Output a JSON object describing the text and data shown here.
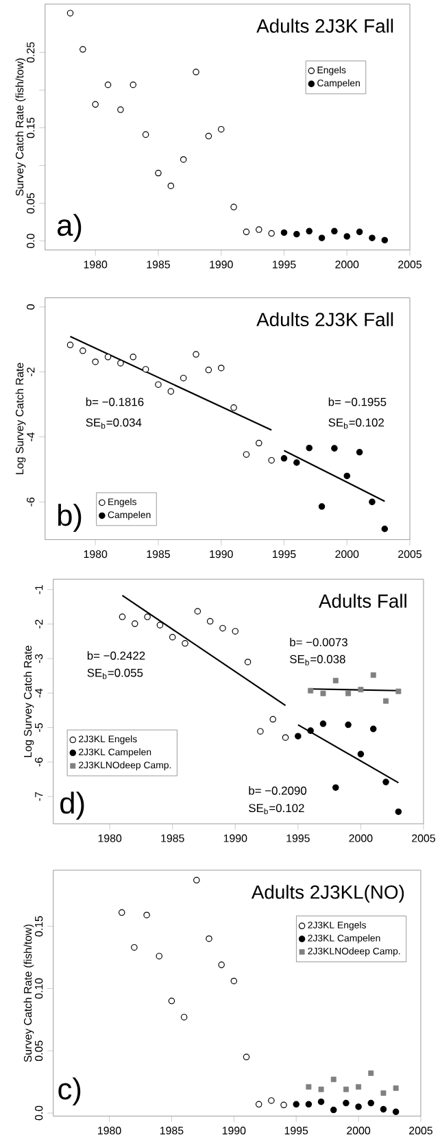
{
  "chart_data": [
    {
      "type": "scatter",
      "title": "Adults 2J3K Fall",
      "ylabel": "Survey Catch Rate (fish/tow)",
      "xlim": [
        1976,
        2005
      ],
      "ylim": [
        -0.012,
        0.314
      ],
      "xticks": [
        1980,
        1985,
        1990,
        1995,
        2000,
        2005
      ],
      "yticks": [
        {
          "value": 0,
          "label": "0.0"
        },
        0.05,
        {
          "value": 0.1,
          "label": null
        },
        0.15,
        {
          "value": 0.2,
          "label": null
        },
        0.25
      ],
      "legend": "top right",
      "annotations": [
        "a)"
      ],
      "series": [
        {
          "name": "Engels",
          "color": "#000000",
          "marker": "circle",
          "x": [
            1978,
            1979,
            1980,
            1981,
            1982,
            1983,
            1984,
            1985,
            1986,
            1987,
            1988,
            1989,
            1990,
            1991,
            1992,
            1993,
            1994
          ],
          "values": [
            0.302,
            0.254,
            0.181,
            0.207,
            0.174,
            0.207,
            0.141,
            0.09,
            0.073,
            0.108,
            0.224,
            0.139,
            0.148,
            0.045,
            0.012,
            0.015,
            0.01
          ]
        },
        {
          "name": "Campelen",
          "color": "#000000",
          "marker": "circle",
          "x": [
            1995,
            1996,
            1997,
            1998,
            1999,
            2000,
            2001,
            2002,
            2003
          ],
          "values": [
            0.011,
            0.009,
            0.013,
            0.004,
            0.013,
            0.006,
            0.012,
            0.004,
            0.001
          ]
        }
      ]
    },
    {
      "type": "scatter",
      "title": "Adults 2J3K Fall",
      "ylabel": "Log Survey Catch Rate",
      "xlim": [
        1976,
        2005
      ],
      "ylim": [
        -7.16,
        0.28
      ],
      "xticks": [
        1980,
        1985,
        1990,
        1995,
        2000,
        2005
      ],
      "yticks": [
        -6,
        -4,
        -2,
        0
      ],
      "legend": "bottom left",
      "annotations": [
        "b= −0.1816",
        "SE$_{b}$=0.034",
        "b= −0.1955",
        "SE$_{b}$=0.102",
        "b)"
      ],
      "series": [
        {
          "name": "Engels",
          "color": "#000000",
          "marker": "circle",
          "x": [
            1978,
            1979,
            1980,
            1981,
            1982,
            1983,
            1984,
            1985,
            1986,
            1987,
            1988,
            1989,
            1990,
            1991,
            1992,
            1993,
            1994
          ],
          "values": [
            -1.17,
            -1.35,
            -1.69,
            -1.54,
            -1.73,
            -1.54,
            -1.92,
            -2.39,
            -2.6,
            -2.19,
            -1.46,
            -1.94,
            -1.88,
            -3.1,
            -4.54,
            -4.19,
            -4.72
          ]
        },
        {
          "name": "Campelen",
          "color": "#000000",
          "marker": "circle",
          "x": [
            1995,
            1996,
            1997,
            1998,
            1999,
            2000,
            2001,
            2002,
            2003
          ],
          "values": [
            -4.66,
            -4.79,
            -4.34,
            -6.14,
            -4.35,
            -5.2,
            -4.47,
            -6.0,
            -6.83
          ]
        },
        {
          "type": "line",
          "color": "#000000",
          "x": [
            1978,
            1994
          ],
          "values": [
            -0.91,
            -3.79
          ]
        },
        {
          "type": "line",
          "color": "#000000",
          "x": [
            1995,
            2003
          ],
          "values": [
            -4.42,
            -5.98
          ]
        }
      ]
    },
    {
      "type": "scatter",
      "title": "Adults Fall",
      "ylabel": "Log Survey Catch Rate",
      "xlim": [
        1975.5,
        2005
      ],
      "ylim": [
        -7.79,
        -0.7
      ],
      "xticks": [
        1980,
        1985,
        1990,
        1995,
        2000,
        2005
      ],
      "yticks": [
        -7,
        -6,
        -5,
        -4,
        -3,
        -2,
        -1
      ],
      "legend": "bottom left",
      "annotations": [
        "b= −0.2422",
        "SE$_{b}$=0.055",
        "b= −0.0073",
        "SE$_{b}$=0.038",
        "b= −0.2090",
        "SE$_{b}$=0.102",
        "d)"
      ],
      "series": [
        {
          "name": "2J3KL Engels",
          "color": "#000000",
          "marker": "circle",
          "x": [
            1981,
            1982,
            1983,
            1984,
            1985,
            1986,
            1987,
            1988,
            1989,
            1990,
            1991,
            1992,
            1993,
            1994
          ],
          "values": [
            -1.79,
            -1.99,
            -1.79,
            -2.03,
            -2.38,
            -2.56,
            -1.63,
            -1.92,
            -2.12,
            -2.21,
            -3.1,
            -5.11,
            -4.76,
            -5.29
          ]
        },
        {
          "name": "2J3KL Campelen",
          "color": "#000000",
          "marker": "circle",
          "x": [
            1995,
            1996,
            1997,
            1998,
            1999,
            2000,
            2001,
            2002,
            2003
          ],
          "values": [
            -5.25,
            -5.09,
            -4.89,
            -6.74,
            -4.92,
            -5.77,
            -5.04,
            -6.58,
            -7.44
          ]
        },
        {
          "name": "2J3KLNOdeep Camp.",
          "color": "#808080",
          "marker": "square",
          "x": [
            1996,
            1997,
            1998,
            1999,
            2000,
            2001,
            2002,
            2003
          ],
          "values": [
            -3.93,
            -4.01,
            -3.64,
            -4.01,
            -3.9,
            -3.48,
            -4.23,
            -3.95
          ]
        },
        {
          "type": "line",
          "color": "#000000",
          "x": [
            1981,
            1994
          ],
          "values": [
            -1.17,
            -4.36
          ]
        },
        {
          "type": "line",
          "color": "#000000",
          "x": [
            1995,
            2003
          ],
          "values": [
            -4.92,
            -6.6
          ]
        },
        {
          "type": "line",
          "color": "#000000",
          "x": [
            1996,
            2003
          ],
          "values": [
            -3.88,
            -3.93
          ]
        }
      ]
    },
    {
      "type": "scatter",
      "title": "Adults 2J3KL(NO)",
      "ylabel": "Survey Catch Rate (fish/tow)",
      "xlim": [
        1975.5,
        2005
      ],
      "ylim": [
        -0.0025,
        0.195
      ],
      "xticks": [
        1980,
        1985,
        1990,
        1995,
        2000,
        2005
      ],
      "yticks": [
        {
          "value": 0,
          "label": "0.0"
        },
        0.05,
        {
          "value": 0.1,
          "label": "0.10"
        },
        0.15
      ],
      "legend": "top right",
      "annotations": [
        "c)"
      ],
      "series": [
        {
          "name": "2J3KL Engels",
          "color": "#000000",
          "marker": "circle",
          "x": [
            1981,
            1982,
            1983,
            1984,
            1985,
            1986,
            1987,
            1988,
            1989,
            1990,
            1991,
            1992,
            1993,
            1994
          ],
          "values": [
            0.161,
            0.133,
            0.159,
            0.126,
            0.09,
            0.077,
            0.187,
            0.14,
            0.119,
            0.106,
            0.045,
            0.007,
            0.01,
            0.0065
          ]
        },
        {
          "name": "2J3KL Campelen",
          "color": "#000000",
          "marker": "circle",
          "x": [
            1995,
            1996,
            1997,
            1998,
            1999,
            2000,
            2001,
            2002,
            2003
          ],
          "values": [
            0.007,
            0.007,
            0.009,
            0.0025,
            0.008,
            0.005,
            0.008,
            0.003,
            0.001
          ]
        },
        {
          "name": "2J3KLNOdeep Camp.",
          "color": "#808080",
          "marker": "square",
          "x": [
            1996,
            1997,
            1998,
            1999,
            2000,
            2001,
            2002,
            2003
          ],
          "values": [
            0.021,
            0.019,
            0.027,
            0.019,
            0.021,
            0.032,
            0.016,
            0.02
          ]
        }
      ]
    }
  ]
}
